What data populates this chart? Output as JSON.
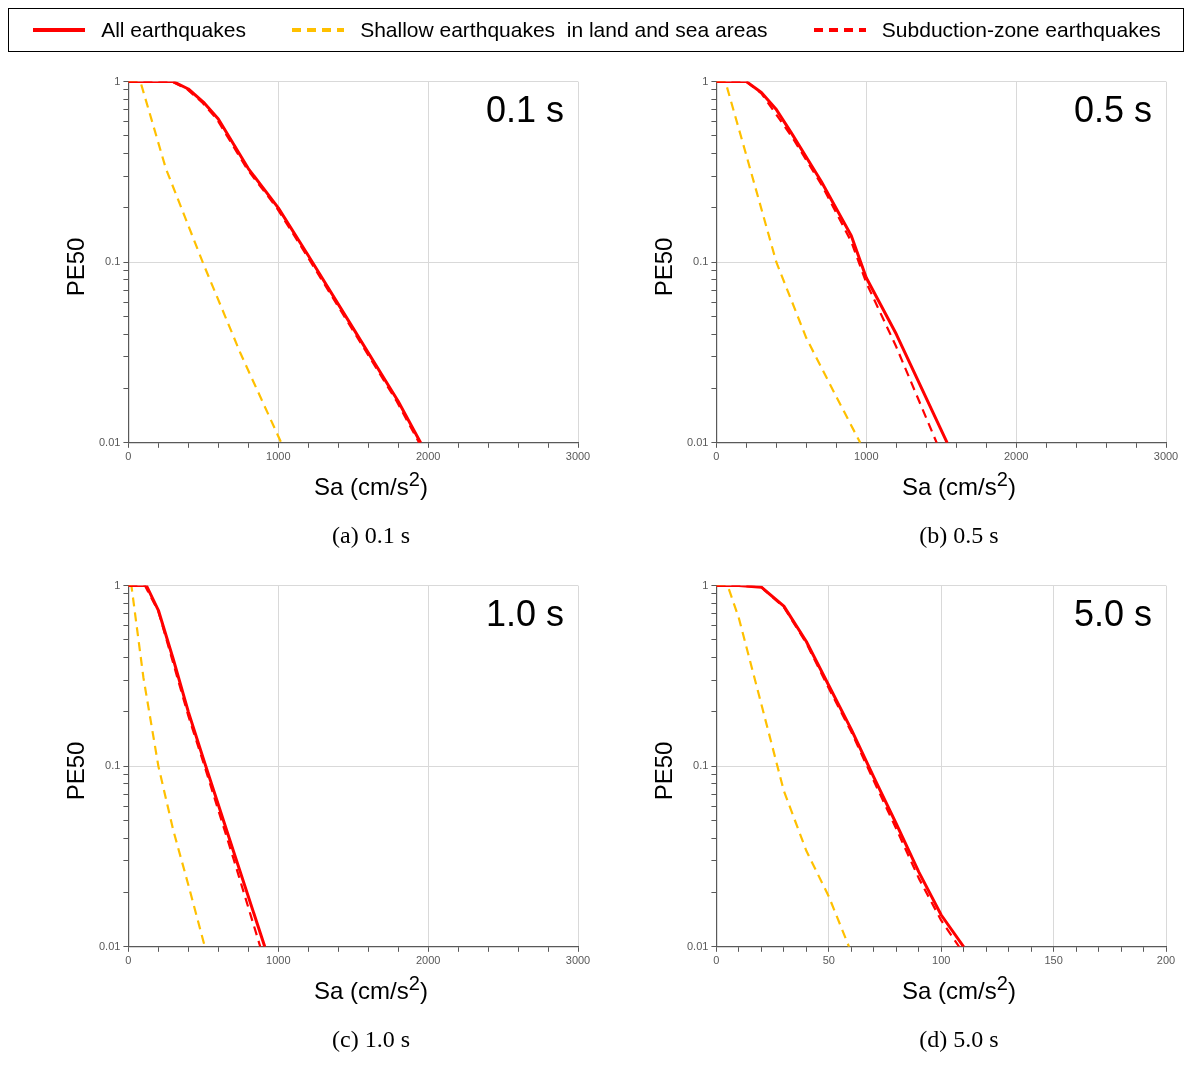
{
  "chart_data": [
    {
      "type": "line",
      "title": "(a) 0.1 s",
      "annotations": [
        "0.1 s"
      ],
      "xlabel": "Sa (cm/s$^{2}$)",
      "ylabel": "PE50",
      "legend": "top",
      "log": "y",
      "grid": true,
      "xlim": [
        0,
        3000
      ],
      "ylim": [
        0.01,
        1
      ],
      "xticks": [
        0,
        {
          "value": 200,
          "label": null
        },
        {
          "value": 400,
          "label": null
        },
        {
          "value": 600,
          "label": null
        },
        {
          "value": 800,
          "label": null
        },
        1000,
        {
          "value": 1200,
          "label": null
        },
        {
          "value": 1400,
          "label": null
        },
        {
          "value": 1600,
          "label": null
        },
        {
          "value": 1800,
          "label": null
        },
        2000,
        {
          "value": 2200,
          "label": null
        },
        {
          "value": 2400,
          "label": null
        },
        {
          "value": 2600,
          "label": null
        },
        {
          "value": 2800,
          "label": null
        },
        3000
      ],
      "yticks": [
        0.01,
        {
          "value": 0.02,
          "label": null
        },
        {
          "value": 0.03,
          "label": null
        },
        {
          "value": 0.04,
          "label": null
        },
        {
          "value": 0.05,
          "label": null
        },
        {
          "value": 0.06,
          "label": null
        },
        {
          "value": 0.07,
          "label": null
        },
        {
          "value": 0.08,
          "label": null
        },
        {
          "value": 0.09,
          "label": null
        },
        0.1,
        {
          "value": 0.2,
          "label": null
        },
        {
          "value": 0.3,
          "label": null
        },
        {
          "value": 0.4,
          "label": null
        },
        {
          "value": 0.5,
          "label": null
        },
        {
          "value": 0.6,
          "label": null
        },
        {
          "value": 0.7,
          "label": null
        },
        {
          "value": 0.8,
          "label": null
        },
        {
          "value": 0.9,
          "label": null
        },
        1
      ],
      "series": [
        {
          "name": "All earthquakes",
          "color": "#ff0000",
          "line_style": "solid",
          "x": [
            0,
            300,
            400,
            500,
            600,
            800,
            1000,
            1200,
            1500,
            1800,
            1950
          ],
          "values": [
            1,
            1,
            0.91,
            0.77,
            0.62,
            0.33,
            0.2,
            0.109,
            0.043,
            0.017,
            0.01
          ]
        },
        {
          "name": "Shallow earthquakes  in land and sea areas",
          "color": "#ffc000",
          "line_style": "dashed",
          "x": [
            0,
            80,
            250,
            500,
            750,
            1020
          ],
          "values": [
            1,
            1,
            0.33,
            0.098,
            0.031,
            0.01
          ]
        },
        {
          "name": "Subduction-zone earthquakes",
          "color": "#ff0000",
          "line_style": "dashed",
          "x": [
            0,
            290,
            390,
            490,
            590,
            790,
            990,
            1190,
            1490,
            1790,
            1940
          ],
          "values": [
            1,
            1,
            0.91,
            0.77,
            0.62,
            0.33,
            0.2,
            0.109,
            0.043,
            0.017,
            0.01
          ]
        }
      ]
    },
    {
      "type": "line",
      "title": "(b) 0.5 s",
      "annotations": [
        "0.5 s"
      ],
      "xlabel": "Sa (cm/s$^{2}$)",
      "ylabel": "PE50",
      "log": "y",
      "grid": true,
      "xlim": [
        0,
        3000
      ],
      "ylim": [
        0.01,
        1
      ],
      "xticks": [
        0,
        {
          "value": 200,
          "label": null
        },
        {
          "value": 400,
          "label": null
        },
        {
          "value": 600,
          "label": null
        },
        {
          "value": 800,
          "label": null
        },
        1000,
        {
          "value": 1200,
          "label": null
        },
        {
          "value": 1400,
          "label": null
        },
        {
          "value": 1600,
          "label": null
        },
        {
          "value": 1800,
          "label": null
        },
        2000,
        {
          "value": 2200,
          "label": null
        },
        {
          "value": 2400,
          "label": null
        },
        {
          "value": 2600,
          "label": null
        },
        {
          "value": 2800,
          "label": null
        },
        3000
      ],
      "yticks": [
        0.01,
        {
          "value": 0.02,
          "label": null
        },
        {
          "value": 0.03,
          "label": null
        },
        {
          "value": 0.04,
          "label": null
        },
        {
          "value": 0.05,
          "label": null
        },
        {
          "value": 0.06,
          "label": null
        },
        {
          "value": 0.07,
          "label": null
        },
        {
          "value": 0.08,
          "label": null
        },
        {
          "value": 0.09,
          "label": null
        },
        0.1,
        {
          "value": 0.2,
          "label": null
        },
        {
          "value": 0.3,
          "label": null
        },
        {
          "value": 0.4,
          "label": null
        },
        {
          "value": 0.5,
          "label": null
        },
        {
          "value": 0.6,
          "label": null
        },
        {
          "value": 0.7,
          "label": null
        },
        {
          "value": 0.8,
          "label": null
        },
        {
          "value": 0.9,
          "label": null
        },
        1
      ],
      "series": [
        {
          "color": "#ff0000",
          "line_style": "solid",
          "x": [
            0,
            200,
            300,
            400,
            500,
            700,
            900,
            1000,
            1200,
            1540
          ],
          "values": [
            1,
            1,
            0.87,
            0.7,
            0.52,
            0.28,
            0.14,
            0.082,
            0.04,
            0.01
          ]
        },
        {
          "color": "#ffc000",
          "line_style": "dashed",
          "x": [
            0,
            60,
            200,
            400,
            600,
            800,
            960
          ],
          "values": [
            1,
            1,
            0.39,
            0.1,
            0.038,
            0.018,
            0.01
          ]
        },
        {
          "color": "#ff0000",
          "line_style": "dashed",
          "x": [
            0,
            200,
            300,
            500,
            700,
            900,
            1000,
            1200,
            1470
          ],
          "values": [
            1,
            1,
            0.86,
            0.5,
            0.27,
            0.13,
            0.077,
            0.034,
            0.01
          ]
        }
      ]
    },
    {
      "type": "line",
      "title": "(c) 1.0 s",
      "annotations": [
        "1.0 s"
      ],
      "xlabel": "Sa (cm/s$^{2}$)",
      "ylabel": "PE50",
      "log": "y",
      "grid": true,
      "xlim": [
        0,
        3000
      ],
      "ylim": [
        0.01,
        1
      ],
      "xticks": [
        0,
        {
          "value": 200,
          "label": null
        },
        {
          "value": 400,
          "label": null
        },
        {
          "value": 600,
          "label": null
        },
        {
          "value": 800,
          "label": null
        },
        1000,
        {
          "value": 1200,
          "label": null
        },
        {
          "value": 1400,
          "label": null
        },
        {
          "value": 1600,
          "label": null
        },
        {
          "value": 1800,
          "label": null
        },
        2000,
        {
          "value": 2200,
          "label": null
        },
        {
          "value": 2400,
          "label": null
        },
        {
          "value": 2600,
          "label": null
        },
        {
          "value": 2800,
          "label": null
        },
        3000
      ],
      "yticks": [
        0.01,
        {
          "value": 0.02,
          "label": null
        },
        {
          "value": 0.03,
          "label": null
        },
        {
          "value": 0.04,
          "label": null
        },
        {
          "value": 0.05,
          "label": null
        },
        {
          "value": 0.06,
          "label": null
        },
        {
          "value": 0.07,
          "label": null
        },
        {
          "value": 0.08,
          "label": null
        },
        {
          "value": 0.09,
          "label": null
        },
        0.1,
        {
          "value": 0.2,
          "label": null
        },
        {
          "value": 0.3,
          "label": null
        },
        {
          "value": 0.4,
          "label": null
        },
        {
          "value": 0.5,
          "label": null
        },
        {
          "value": 0.6,
          "label": null
        },
        {
          "value": 0.7,
          "label": null
        },
        {
          "value": 0.8,
          "label": null
        },
        {
          "value": 0.9,
          "label": null
        },
        1
      ],
      "series": [
        {
          "color": "#ff0000",
          "line_style": "solid",
          "x": [
            0,
            120,
            200,
            300,
            400,
            500,
            700,
            910
          ],
          "values": [
            1,
            1,
            0.73,
            0.39,
            0.2,
            0.11,
            0.034,
            0.01
          ]
        },
        {
          "color": "#ffc000",
          "line_style": "dashed",
          "x": [
            0,
            20,
            100,
            200,
            300,
            400,
            510
          ],
          "values": [
            1,
            1,
            0.31,
            0.1,
            0.044,
            0.022,
            0.01
          ]
        },
        {
          "color": "#ff0000",
          "line_style": "dashed",
          "x": [
            0,
            110,
            200,
            400,
            500,
            700,
            880
          ],
          "values": [
            1,
            1,
            0.72,
            0.19,
            0.105,
            0.031,
            0.01
          ]
        }
      ]
    },
    {
      "type": "line",
      "title": "(d) 5.0 s",
      "annotations": [
        "5.0 s"
      ],
      "xlabel": "Sa (cm/s$^{2}$)",
      "ylabel": "PE50",
      "log": "y",
      "grid": true,
      "xlim": [
        0,
        200
      ],
      "ylim": [
        0.01,
        1
      ],
      "xticks": [
        0,
        {
          "value": 10,
          "label": null
        },
        {
          "value": 20,
          "label": null
        },
        {
          "value": 30,
          "label": null
        },
        {
          "value": 40,
          "label": null
        },
        50,
        {
          "value": 60,
          "label": null
        },
        {
          "value": 70,
          "label": null
        },
        {
          "value": 80,
          "label": null
        },
        {
          "value": 90,
          "label": null
        },
        100,
        {
          "value": 110,
          "label": null
        },
        {
          "value": 120,
          "label": null
        },
        {
          "value": 130,
          "label": null
        },
        {
          "value": 140,
          "label": null
        },
        150,
        {
          "value": 160,
          "label": null
        },
        {
          "value": 170,
          "label": null
        },
        {
          "value": 180,
          "label": null
        },
        {
          "value": 190,
          "label": null
        },
        200
      ],
      "yticks": [
        0.01,
        {
          "value": 0.02,
          "label": null
        },
        {
          "value": 0.03,
          "label": null
        },
        {
          "value": 0.04,
          "label": null
        },
        {
          "value": 0.05,
          "label": null
        },
        {
          "value": 0.06,
          "label": null
        },
        {
          "value": 0.07,
          "label": null
        },
        {
          "value": 0.08,
          "label": null
        },
        {
          "value": 0.09,
          "label": null
        },
        0.1,
        {
          "value": 0.2,
          "label": null
        },
        {
          "value": 0.3,
          "label": null
        },
        {
          "value": 0.4,
          "label": null
        },
        {
          "value": 0.5,
          "label": null
        },
        {
          "value": 0.6,
          "label": null
        },
        {
          "value": 0.7,
          "label": null
        },
        {
          "value": 0.8,
          "label": null
        },
        {
          "value": 0.9,
          "label": null
        },
        1
      ],
      "series": [
        {
          "color": "#ff0000",
          "line_style": "solid",
          "x": [
            0,
            10,
            20,
            30,
            40,
            50,
            60,
            70,
            80,
            90,
            100,
            110
          ],
          "values": [
            1,
            1,
            0.98,
            0.77,
            0.49,
            0.28,
            0.16,
            0.087,
            0.048,
            0.026,
            0.015,
            0.01
          ]
        },
        {
          "color": "#ffc000",
          "line_style": "dashed",
          "x": [
            0,
            5,
            10,
            20,
            30,
            40,
            50,
            59
          ],
          "values": [
            1,
            1,
            0.66,
            0.22,
            0.073,
            0.034,
            0.019,
            0.01
          ]
        },
        {
          "color": "#ff0000",
          "line_style": "dashed",
          "x": [
            0,
            10,
            20,
            30,
            40,
            50,
            60,
            70,
            80,
            90,
            100,
            108
          ],
          "values": [
            1,
            1,
            0.98,
            0.76,
            0.48,
            0.27,
            0.155,
            0.083,
            0.045,
            0.024,
            0.014,
            0.01
          ]
        }
      ]
    }
  ]
}
